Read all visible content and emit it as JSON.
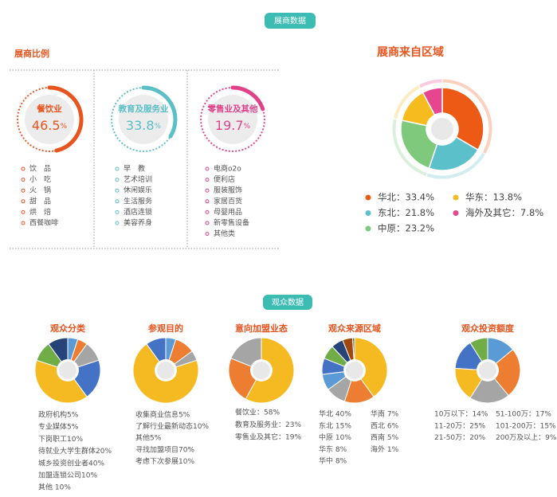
{
  "exhibitor_badge": "展商数据",
  "visitor_badge": "观众数据",
  "chart_data": [
    {
      "type": "ring",
      "title": "展商比例",
      "unit": "%",
      "categories": [
        "餐饮业",
        "教育及服务业",
        "零售业及其他"
      ],
      "values": [
        46.5,
        33.8,
        19.7
      ],
      "colors": [
        "#e8541e",
        "#5bbfc6",
        "#e0428a"
      ],
      "items": [
        [
          "饮　品",
          "小　吃",
          "火　锅",
          "甜　品",
          "烘　焙",
          "西餐咖啡"
        ],
        [
          "早　教",
          "艺术培训",
          "休闲娱乐",
          "生活服务",
          "酒店连锁",
          "美容养身"
        ],
        [
          "电商o2o",
          "便利店",
          "服装服饰",
          "家居百货",
          "母婴用品",
          "新零售设备",
          "其他类"
        ]
      ]
    },
    {
      "type": "donut",
      "title": "展商来自区域",
      "categories": [
        "华北：33.4%",
        "东北：21.8%",
        "中原：23.2%",
        "华东：13.8%",
        "海外及其它：7.8%"
      ],
      "values": [
        33.4,
        21.8,
        23.2,
        13.8,
        7.8
      ],
      "colors": [
        "#ec5a16",
        "#5cc0ca",
        "#7fc97c",
        "#f5bb1f",
        "#e5468d"
      ]
    },
    {
      "type": "pie",
      "title": "观众分类",
      "categories": [
        "政府机构5%",
        "专业媒体5%",
        "下岗职工10%",
        "待就业大学生群体20%",
        "城乡投资创业者40%",
        "加盟连锁公司10%",
        "其他 10%"
      ],
      "values": [
        5,
        5,
        10,
        20,
        40,
        10,
        10
      ],
      "colors": [
        "#5b9bd5",
        "#ed7d31",
        "#a5a5a5",
        "#4472c4",
        "#f5b921",
        "#70ad47",
        "#264478"
      ]
    },
    {
      "type": "pie",
      "title": "参观目的",
      "categories": [
        "收集商业信息5%",
        "了解行业最新动态10%",
        "其他5%",
        "寻找加盟项目70%",
        "考虑下次参展10%"
      ],
      "values": [
        5,
        10,
        5,
        70,
        10
      ],
      "colors": [
        "#5b9bd5",
        "#ed7d31",
        "#a5a5a5",
        "#f5b921",
        "#4472c4"
      ]
    },
    {
      "type": "pie",
      "title": "意向加盟业态",
      "categories": [
        "餐饮业：58%",
        "教育及服务业：23%",
        "零售业及其它：19%"
      ],
      "values": [
        58,
        23,
        19
      ],
      "colors": [
        "#f5b921",
        "#ed7d31",
        "#a5a5a5"
      ]
    },
    {
      "type": "pie",
      "title": "观众来源区域",
      "categories": [
        "华北 40%",
        "东北 15%",
        "中原 10%",
        "华东 8%",
        "华中 8%",
        "华南 7%",
        "西北 6%",
        "西南 5%",
        "海外 1%"
      ],
      "values": [
        40,
        15,
        10,
        8,
        8,
        7,
        6,
        5,
        1
      ],
      "colors": [
        "#f5b921",
        "#ed7d31",
        "#a5a5a5",
        "#5b9bd5",
        "#4472c4",
        "#70ad47",
        "#264478",
        "#9e480e",
        "#636363"
      ]
    },
    {
      "type": "pie",
      "title": "观众投资额度",
      "categories": [
        "10万以下：14%",
        "11-20万：25%",
        "21-50万：20%",
        "51-100万：17%",
        "101-200万：15%",
        "200万及以上：9%"
      ],
      "values": [
        14,
        25,
        20,
        17,
        15,
        9
      ],
      "colors": [
        "#5b9bd5",
        "#ed7d31",
        "#a5a5a5",
        "#f5b921",
        "#4472c4",
        "#70ad47"
      ]
    }
  ]
}
